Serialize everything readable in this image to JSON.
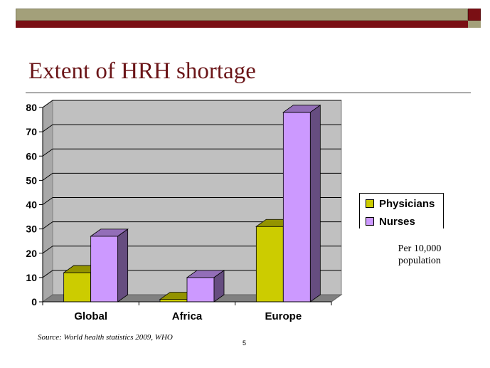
{
  "slide": {
    "title": "Extent of HRH shortage",
    "note_line1": "Per 10,000",
    "note_line2": "population",
    "source": "Source: World health statistics 2009, WHO",
    "page_number": "5"
  },
  "colors": {
    "physicians": "#cccc00",
    "nurses": "#cc99ff",
    "title": "#6b1518",
    "band_light": "#a3a07a",
    "band_dark": "#7a0f14",
    "plot_wall": "#c0c0c0"
  },
  "chart_data": {
    "type": "bar",
    "categories": [
      "Global",
      "Africa",
      "Europe"
    ],
    "series": [
      {
        "name": "Physicians",
        "values": [
          12,
          1,
          31
        ]
      },
      {
        "name": "Nurses",
        "values": [
          27,
          10,
          78
        ]
      }
    ],
    "title": "",
    "xlabel": "",
    "ylabel": "",
    "ylim": [
      0,
      80
    ],
    "yticks": [
      0,
      10,
      20,
      30,
      40,
      50,
      60,
      70,
      80
    ],
    "grid": true,
    "legend_position": "right"
  }
}
